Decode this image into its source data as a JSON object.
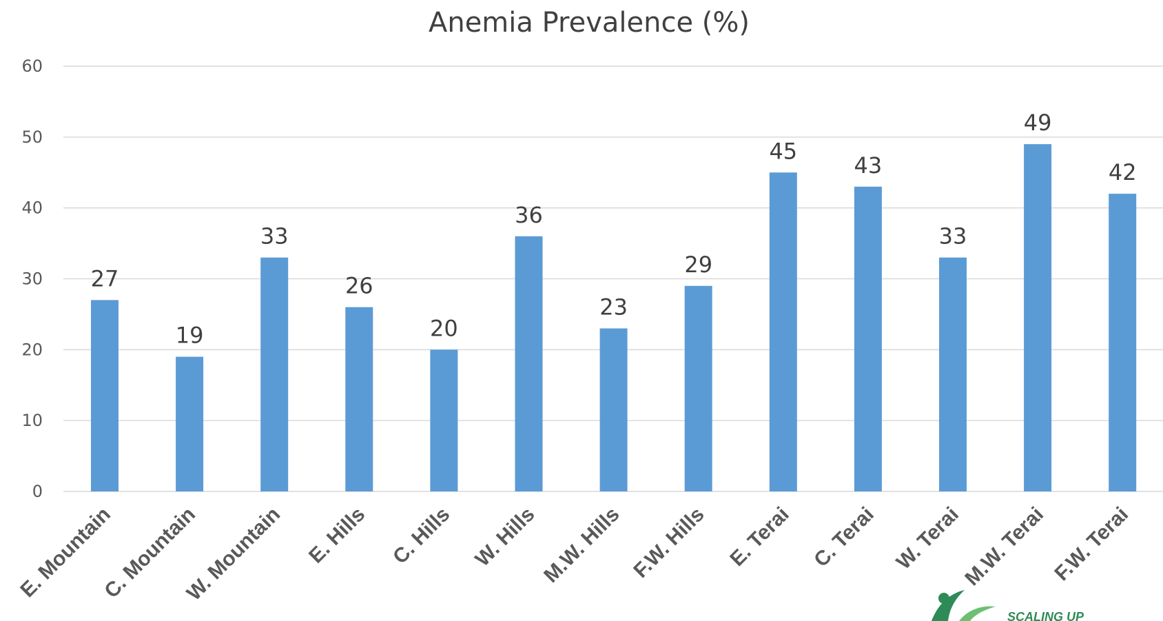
{
  "chart_data": {
    "type": "bar",
    "title": "Anemia Prevalence (%)",
    "xlabel": "",
    "ylabel": "",
    "categories": [
      "E. Mountain",
      "C. Mountain",
      "W. Mountain",
      "E. Hills",
      "C. Hills",
      "W. Hills",
      "M.W. Hills",
      "F.W. Hills",
      "E. Terai",
      "C. Terai",
      "W. Terai",
      "M.W. Terai",
      "F.W. Terai"
    ],
    "values": [
      27,
      19,
      33,
      26,
      20,
      36,
      23,
      29,
      45,
      43,
      33,
      49,
      42
    ],
    "ylim": [
      0,
      60
    ],
    "yticks": [
      "0",
      "10",
      "20",
      "30",
      "40",
      "50",
      "60"
    ],
    "grid": true,
    "legend": "none",
    "bar_color": "#5b9bd5"
  },
  "logo": {
    "text": "SCALING UP",
    "color": "#2e8b57"
  }
}
